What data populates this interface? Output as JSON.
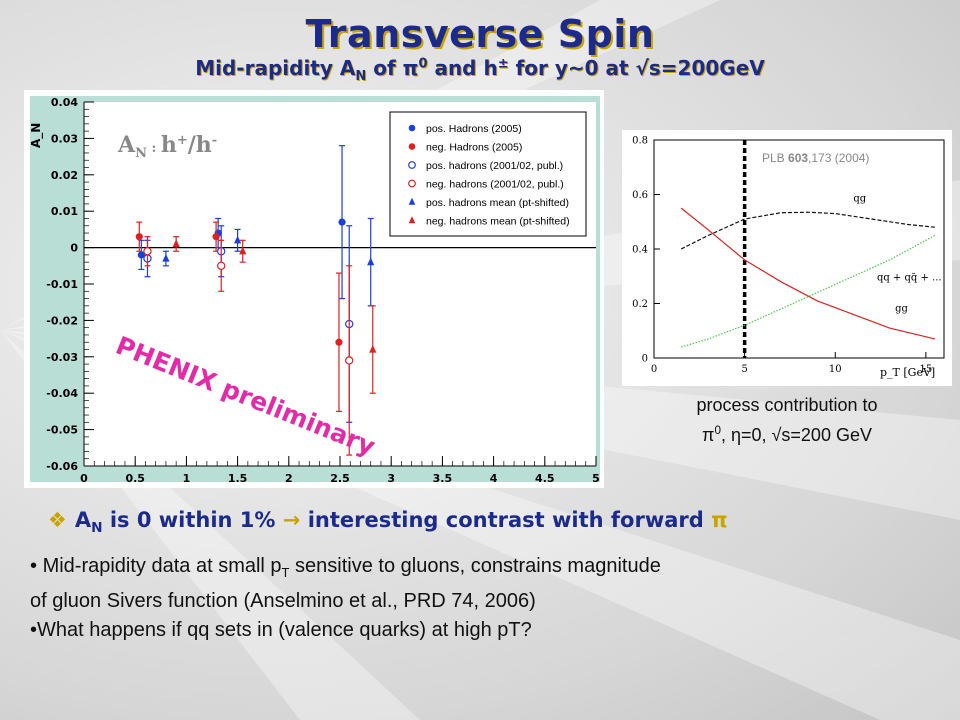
{
  "slide": {
    "title": "Transverse Spin",
    "subtitle_parts": [
      "Mid-rapidity A",
      "N",
      " of ",
      "π",
      "0",
      " and h",
      "±",
      " for y~0 at ",
      "√",
      "s=200GeV"
    ],
    "headline_parts": [
      "❖",
      "A",
      "N",
      " is 0 within 1% ",
      "→",
      " interesting contrast with forward ",
      "π"
    ],
    "bullet1_parts": [
      "• ",
      " Mid-rapidity data at small p",
      "T",
      " sensitive to gluons, constrains magnitude"
    ],
    "bullet1_line2": "of gluon Sivers function (Anselmino et al., PRD 74, 2006)",
    "bullet2": "•What happens if qq sets in (valence quarks) at high pT?",
    "inset_caption_line1": "process contribution to",
    "inset_caption_line2_parts": [
      "π",
      "0",
      ", ",
      "η",
      "=0, ",
      "√",
      "s=200 GeV"
    ]
  },
  "chart_data": [
    {
      "type": "scatter",
      "ylabel": "A_N",
      "in_plot_label_parts": [
        "A",
        "N",
        " : ",
        "h",
        "+",
        "/h",
        "-"
      ],
      "watermark": "PHENIX preliminary",
      "xlim": [
        0,
        5
      ],
      "ylim": [
        -0.06,
        0.04
      ],
      "xticks": [
        "0",
        "0.5",
        "1",
        "1.5",
        "2",
        "2.5",
        "3",
        "3.5",
        "4",
        "4.5",
        "5"
      ],
      "yticks": [
        "0.04",
        "0.03",
        "0.02",
        "0.01",
        "0",
        "-0.01",
        "-0.02",
        "-0.03",
        "-0.04",
        "-0.05",
        "-0.06"
      ],
      "reference_line_y": 0,
      "legend_position": "top-right",
      "series": [
        {
          "name": "pos. Hadrons (2005)",
          "color": "#1a3fe0",
          "marker": "filled-circle",
          "points": [
            {
              "x": 0.56,
              "y": -0.002,
              "err": 0.004
            },
            {
              "x": 1.31,
              "y": 0.004,
              "err": 0.004
            },
            {
              "x": 2.52,
              "y": 0.007,
              "err": 0.021
            }
          ]
        },
        {
          "name": "neg. Hadrons (2005)",
          "color": "#e02020",
          "marker": "filled-circle",
          "points": [
            {
              "x": 0.54,
              "y": 0.003,
              "err": 0.004
            },
            {
              "x": 1.29,
              "y": 0.003,
              "err": 0.004
            },
            {
              "x": 2.49,
              "y": -0.026,
              "err": 0.019
            }
          ]
        },
        {
          "name": "pos. hadrons (2001/02, publ.)",
          "color": "#1a3fe0",
          "marker": "open-circle",
          "points": [
            {
              "x": 0.62,
              "y": -0.003,
              "err": 0.005
            },
            {
              "x": 1.34,
              "y": -0.001,
              "err": 0.007
            },
            {
              "x": 2.59,
              "y": -0.021,
              "err": 0.027
            }
          ]
        },
        {
          "name": "neg. hadrons (2001/02, publ.)",
          "color": "#e02020",
          "marker": "open-circle",
          "points": [
            {
              "x": 0.62,
              "y": -0.001,
              "err": 0.004
            },
            {
              "x": 1.34,
              "y": -0.005,
              "err": 0.007
            },
            {
              "x": 2.59,
              "y": -0.031,
              "err": 0.026
            }
          ]
        },
        {
          "name": "pos. hadrons mean (pt-shifted)",
          "color": "#1a3fe0",
          "marker": "filled-triangle",
          "points": [
            {
              "x": 0.8,
              "y": -0.003,
              "err": 0.002
            },
            {
              "x": 1.5,
              "y": 0.002,
              "err": 0.003
            },
            {
              "x": 2.8,
              "y": -0.004,
              "err": 0.012
            }
          ]
        },
        {
          "name": "neg. hadrons mean (pt-shifted)",
          "color": "#e02020",
          "marker": "filled-triangle",
          "points": [
            {
              "x": 0.9,
              "y": 0.001,
              "err": 0.002
            },
            {
              "x": 1.55,
              "y": -0.001,
              "err": 0.003
            },
            {
              "x": 2.82,
              "y": -0.028,
              "err": 0.012
            }
          ]
        }
      ]
    },
    {
      "type": "line",
      "citation_parts": [
        "PLB ",
        "603",
        ",173 (2004)"
      ],
      "xlabel": "p_T [GeV]",
      "xlim": [
        0,
        16
      ],
      "ylim": [
        0,
        0.8
      ],
      "xticks": [
        "0",
        "5",
        "10",
        "15"
      ],
      "yticks": [
        "0",
        "0.2",
        "0.4",
        "0.6",
        "0.8"
      ],
      "cut_line_x": 5,
      "series": [
        {
          "name": "qg",
          "color": "#111111",
          "style": "dashed",
          "x": [
            1.5,
            3,
            5,
            7,
            8.5,
            10,
            12,
            14,
            15.5
          ],
          "y": [
            0.4,
            0.45,
            0.51,
            0.533,
            0.535,
            0.53,
            0.51,
            0.49,
            0.48
          ]
        },
        {
          "name": "gg",
          "color": "#e02020",
          "style": "solid",
          "x": [
            1.5,
            3,
            5,
            7,
            9,
            11,
            13,
            15.5
          ],
          "y": [
            0.55,
            0.47,
            0.36,
            0.28,
            0.21,
            0.16,
            0.11,
            0.07
          ]
        },
        {
          "name": "qq + qq̄ + ...",
          "color": "#44cc44",
          "style": "dotted",
          "x": [
            1.5,
            3,
            5,
            7,
            9,
            11,
            13,
            15.5
          ],
          "y": [
            0.04,
            0.07,
            0.12,
            0.18,
            0.24,
            0.3,
            0.36,
            0.45
          ]
        }
      ]
    }
  ]
}
